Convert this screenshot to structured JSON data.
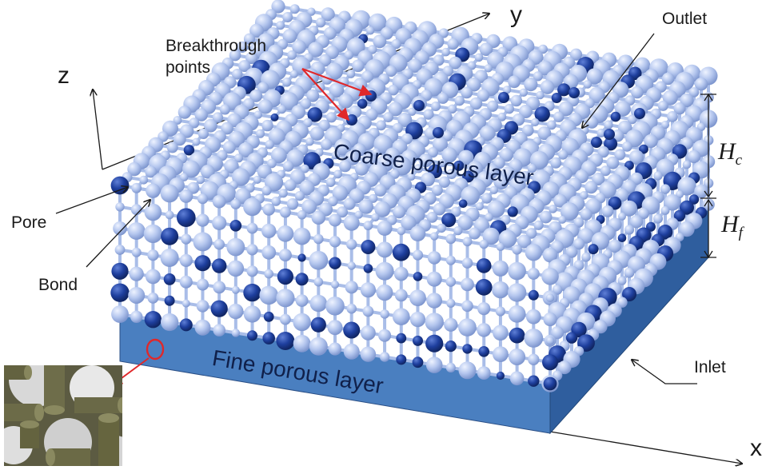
{
  "axes": {
    "x": "x",
    "y": "y",
    "z": "z"
  },
  "labels": {
    "breakthrough_line1": "Breakthrough",
    "breakthrough_line2": "points",
    "outlet": "Outlet",
    "coarse_layer": "Coarse porous layer",
    "fine_layer": "Fine porous layer",
    "pore": "Pore",
    "bond": "Bond",
    "inlet": "Inlet",
    "hc_base": "H",
    "hc_sub": "c",
    "hf_base": "H",
    "hf_sub": "f"
  },
  "colors": {
    "light_pore": "#b4c6ee",
    "dark_pore": "#1e3f9e",
    "fine_layer_front": "#4a7fc0",
    "fine_layer_side": "#2f5e9e",
    "arrow_red": "#e0282a",
    "arrow_black": "#1a1a1a"
  }
}
